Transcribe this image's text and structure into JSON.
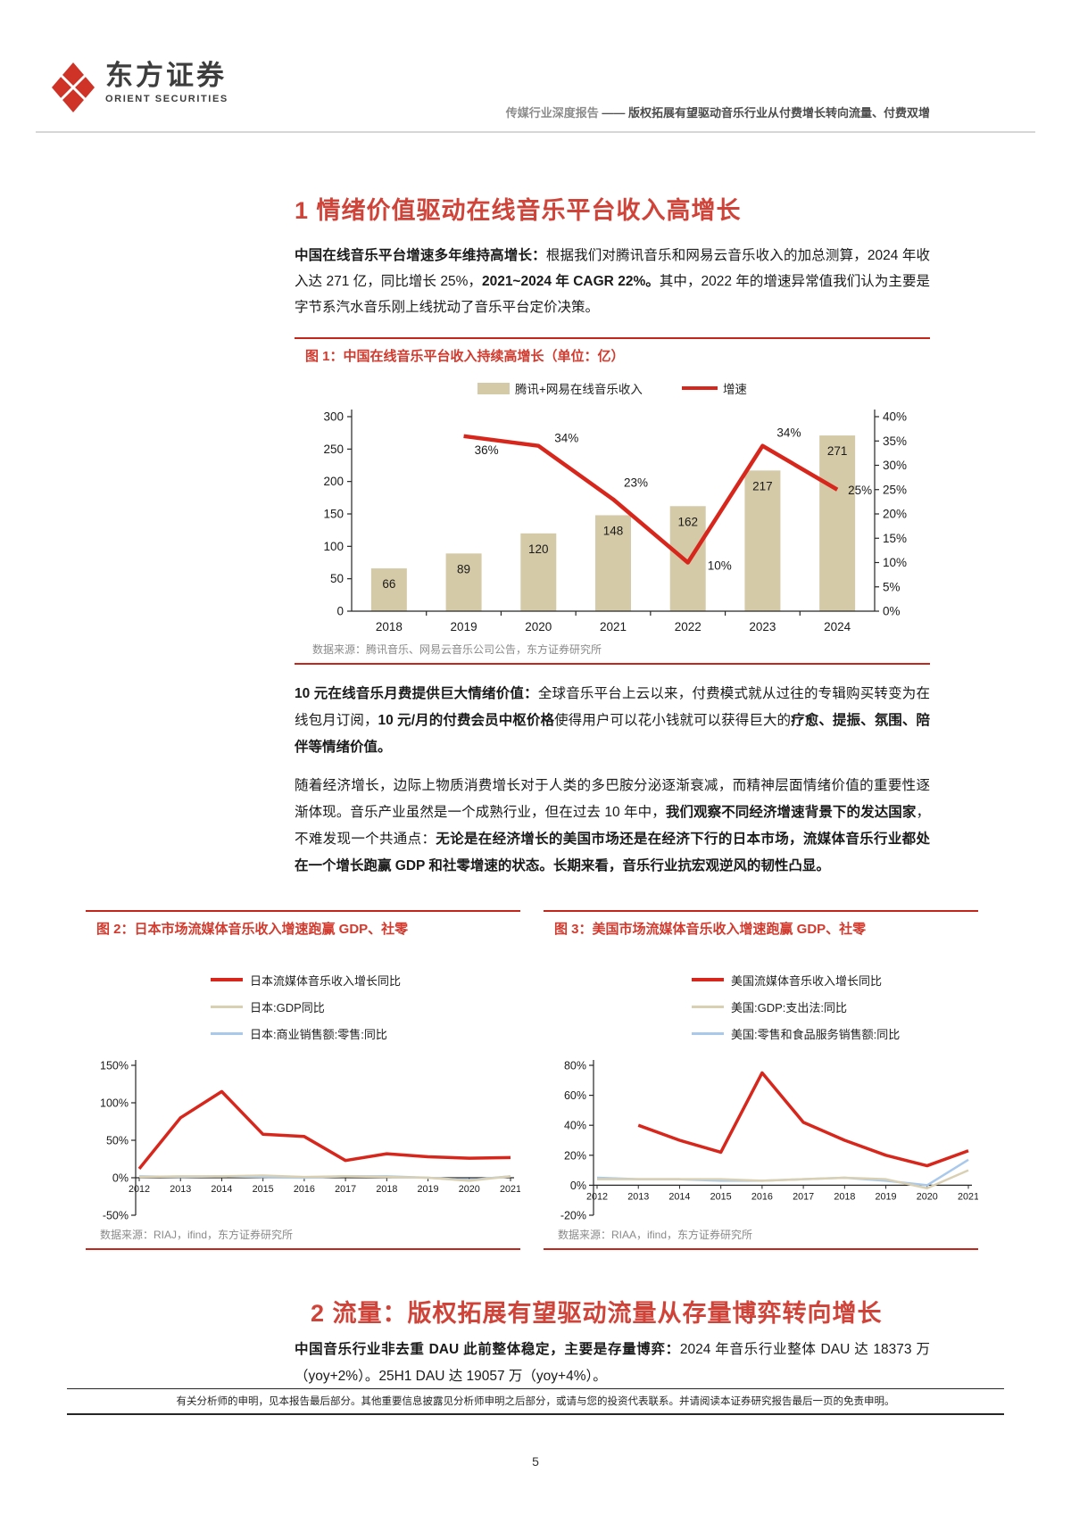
{
  "header": {
    "brand_cn": "东方证券",
    "brand_en": "ORIENT SECURITIES",
    "report_type": "传媒行业深度报告",
    "dash": "——",
    "report_title": "版权拓展有望驱动音乐行业从付费增长转向流量、付费双增"
  },
  "section1": {
    "title": "1 情绪价值驱动在线音乐平台收入高增长"
  },
  "section2": {
    "title": "2 流量：版权拓展有望驱动流量从存量博弈转向增长"
  },
  "paragraphs": {
    "p1": [
      {
        "t": "中国在线音乐平台增速多年维持高增长：",
        "b": true
      },
      {
        "t": "根据我们对腾讯音乐和网易云音乐收入的加总测算，2024 年收入达 271 亿，同比增长 25%，",
        "b": false
      },
      {
        "t": "2021~2024 年 CAGR 22%。",
        "b": true
      },
      {
        "t": "其中，2022 年的增速异常值我们认为主要是字节系汽水音乐刚上线扰动了音乐平台定价决策。",
        "b": false
      }
    ],
    "p2": [
      {
        "t": "10 元在线音乐月费提供巨大情绪价值：",
        "b": true
      },
      {
        "t": "全球音乐平台上云以来，付费模式就从过往的专辑购买转变为在线包月订阅，",
        "b": false
      },
      {
        "t": "10 元/月的付费会员中枢价格",
        "b": true
      },
      {
        "t": "使得用户可以花小钱就可以获得巨大的",
        "b": false
      },
      {
        "t": "疗愈、提振、氛围、陪伴等情绪价值。",
        "b": true
      }
    ],
    "p3": [
      {
        "t": "随着经济增长，边际上物质消费增长对于人类的多巴胺分泌逐渐衰减，而精神层面情绪价值的重要性逐渐体现。音乐产业虽然是一个成熟行业，但在过去 10 年中，",
        "b": false
      },
      {
        "t": "我们观察不同经济增速背景下的发达国家",
        "b": true
      },
      {
        "t": "，不难发现一个共通点：",
        "b": false
      },
      {
        "t": "无论是在经济增长的美国市场还是在经济下行的日本市场，流媒体音乐行业都处在一个增长跑赢 GDP 和社零增速的状态。长期来看，音乐行业抗宏观逆风的韧性凸显。",
        "b": true
      }
    ],
    "p4": [
      {
        "t": "中国音乐行业非去重 DAU 此前整体稳定，主要是存量博弈：",
        "b": true
      },
      {
        "t": "2024 年音乐行业整体 DAU 达 18373 万（yoy+2%）。25H1 DAU 达 19057 万（yoy+4%）。",
        "b": false
      }
    ]
  },
  "figure1": {
    "caption": "图 1：中国在线音乐平台收入持续高增长（单位：亿）",
    "legend": [
      "腾讯+网易在线音乐收入",
      "增速"
    ],
    "source": "数据来源：腾讯音乐、网易云音乐公司公告，东方证券研究所"
  },
  "figure2": {
    "caption": "图 2：日本市场流媒体音乐收入增速跑赢 GDP、社零",
    "legend": [
      "日本流媒体音乐收入增长同比",
      "日本:GDP同比",
      "日本:商业销售额:零售:同比"
    ],
    "source": "数据来源：RIAJ，ifind，东方证券研究所"
  },
  "figure3": {
    "caption": "图 3：美国市场流媒体音乐收入增速跑赢 GDP、社零",
    "legend": [
      "美国流媒体音乐收入增长同比",
      "美国:GDP:支出法:同比",
      "美国:零售和食品服务销售额:同比"
    ],
    "source": "数据来源：RIAA，ifind，东方证券研究所"
  },
  "chart_data": [
    {
      "type": "bar+line",
      "title": "中国在线音乐平台收入持续高增长（单位：亿）",
      "categories": [
        "2018",
        "2019",
        "2020",
        "2021",
        "2022",
        "2023",
        "2024"
      ],
      "series": [
        {
          "name": "腾讯+网易在线音乐收入",
          "type": "bar",
          "axis": "left",
          "color": "#d5caa7",
          "values": [
            66,
            89,
            120,
            148,
            162,
            217,
            271
          ]
        },
        {
          "name": "增速",
          "type": "line",
          "axis": "right",
          "color": "#d7261b",
          "unit": "%",
          "values": [
            null,
            36,
            34,
            23,
            10,
            34,
            25
          ]
        }
      ],
      "left_axis": {
        "min": 0,
        "max": 300,
        "ticks": [
          300,
          250,
          200,
          150,
          100,
          50,
          0
        ]
      },
      "right_axis": {
        "min": 0,
        "max": 40,
        "ticks": [
          40,
          35,
          30,
          25,
          20,
          15,
          10,
          5,
          0
        ],
        "format": "percent"
      }
    },
    {
      "type": "line",
      "title": "日本市场流媒体音乐收入增速跑赢 GDP、社零",
      "x": [
        "2012",
        "2013",
        "2014",
        "2015",
        "2016",
        "2017",
        "2018",
        "2019",
        "2020",
        "2021"
      ],
      "series": [
        {
          "name": "日本流媒体音乐收入增长同比",
          "color": "#d7261b",
          "width": 3.5,
          "values": [
            12,
            80,
            115,
            58,
            55,
            23,
            32,
            28,
            26,
            27
          ]
        },
        {
          "name": "日本:GDP同比",
          "color": "#d9d0b3",
          "width": 2.5,
          "values": [
            1,
            2,
            2,
            3,
            1,
            2,
            1,
            0,
            -4,
            2
          ]
        },
        {
          "name": "日本:商业销售额:零售:同比",
          "color": "#a9c9ec",
          "width": 2.5,
          "values": [
            2,
            1,
            2,
            1,
            0,
            2,
            2,
            0,
            -3,
            2
          ]
        }
      ],
      "y_axis": {
        "min": -50,
        "max": 150,
        "ticks": [
          150,
          100,
          50,
          0,
          -50
        ],
        "format": "percent"
      }
    },
    {
      "type": "line",
      "title": "美国市场流媒体音乐收入增速跑赢 GDP、社零",
      "x": [
        "2012",
        "2013",
        "2014",
        "2015",
        "2016",
        "2017",
        "2018",
        "2019",
        "2020",
        "2021"
      ],
      "series": [
        {
          "name": "美国流媒体音乐收入增长同比",
          "color": "#d7261b",
          "width": 3.5,
          "values": [
            null,
            40,
            30,
            22,
            75,
            42,
            30,
            20,
            13,
            23
          ]
        },
        {
          "name": "美国:GDP:支出法:同比",
          "color": "#d9d0b3",
          "width": 2.5,
          "values": [
            4,
            4,
            4,
            4,
            3,
            4,
            5,
            4,
            -2,
            10
          ]
        },
        {
          "name": "美国:零售和食品服务销售额:同比",
          "color": "#a9c9ec",
          "width": 2.5,
          "values": [
            5,
            4,
            4,
            3,
            3,
            4,
            5,
            3,
            0,
            17
          ]
        }
      ],
      "y_axis": {
        "min": -20,
        "max": 80,
        "ticks": [
          80,
          60,
          40,
          20,
          0,
          -20
        ],
        "format": "percent"
      }
    }
  ],
  "footer": {
    "disclaimer": "有关分析师的申明，见本报告最后部分。其他重要信息披露见分析师申明之后部分，或请与您的投资代表联系。并请阅读本证券研究报告最后一页的免责申明。",
    "page_number": "5"
  },
  "colors": {
    "accent_red": "#c5261c",
    "caption_red": "#d23a2e",
    "heading_red": "#cf4339",
    "bar_tan": "#d5caa7",
    "line_red": "#d7261b",
    "line_tan": "#d9d0b3",
    "line_blue": "#a9c9ec"
  }
}
